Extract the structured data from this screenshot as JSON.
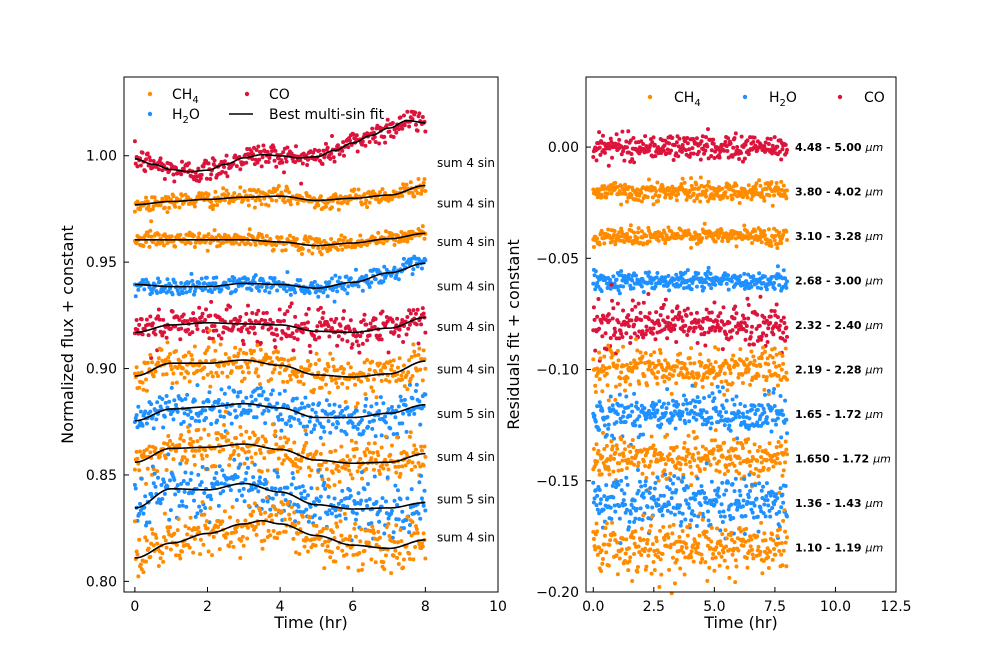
{
  "colors": {
    "CH4": "#FF8C00",
    "H2O": "#1E90FF",
    "CO": "#DC143C",
    "fit": "#000000"
  },
  "chart_data": [
    {
      "type": "scatter",
      "panel": "left",
      "xlabel": "Time (hr)",
      "ylabel": "Normalized flux + constant",
      "xlim": [
        -0.3,
        10
      ],
      "ylim": [
        0.795,
        1.037
      ],
      "xticks": [
        0,
        2,
        4,
        6,
        8,
        10
      ],
      "xtick_labels": [
        "0",
        "2",
        "4",
        "6",
        "8",
        "10"
      ],
      "yticks": [
        0.8,
        0.85,
        0.9,
        0.95,
        1.0
      ],
      "ytick_labels": [
        "0.80",
        "0.85",
        "0.90",
        "0.95",
        "1.00"
      ],
      "legend": [
        {
          "name": "CH4",
          "label": "CH",
          "sub": "4",
          "color_key": "CH4"
        },
        {
          "name": "CO",
          "label": "CO",
          "sub": "",
          "color_key": "CO"
        },
        {
          "name": "H2O",
          "label": "H",
          "sub": "2",
          "suffix": "O",
          "color_key": "H2O"
        },
        {
          "name": "fit",
          "label": "Best multi-sin fit",
          "sub": "",
          "color_key": "fit"
        }
      ],
      "series": [
        {
          "species": "CO",
          "offset": 0.997,
          "spread": 0.003,
          "fit_label": "sum 4 sin",
          "fit_t": [
            0,
            0.5,
            1,
            1.5,
            2,
            2.5,
            3,
            3.5,
            4,
            4.5,
            5,
            5.5,
            6,
            6.5,
            7,
            7.5,
            8
          ],
          "fit_y": [
            0.9985,
            0.996,
            0.9935,
            0.9925,
            0.9932,
            0.996,
            0.999,
            1.0005,
            1.0,
            0.999,
            0.9995,
            1.0025,
            1.006,
            1.0095,
            1.013,
            1.0165,
            1.0155
          ]
        },
        {
          "species": "CH4",
          "offset": 0.978,
          "spread": 0.002,
          "fit_label": "sum 4 sin",
          "fit_t": [
            0,
            1,
            2,
            3,
            4,
            5,
            6,
            7,
            8
          ],
          "fit_y": [
            0.977,
            0.9785,
            0.9795,
            0.9805,
            0.981,
            0.979,
            0.98,
            0.9815,
            0.986
          ]
        },
        {
          "species": "CH4",
          "offset": 0.96,
          "spread": 0.0018,
          "fit_label": "sum 4 sin",
          "fit_t": [
            0,
            1,
            2,
            3,
            4,
            5,
            6,
            7,
            8
          ],
          "fit_y": [
            0.9605,
            0.9605,
            0.9605,
            0.9605,
            0.9595,
            0.9578,
            0.959,
            0.961,
            0.9635
          ]
        },
        {
          "species": "H2O",
          "offset": 0.939,
          "spread": 0.002,
          "fit_label": "sum 4 sin",
          "fit_t": [
            0,
            1,
            2,
            3,
            4,
            5,
            6,
            7,
            8
          ],
          "fit_y": [
            0.9395,
            0.9385,
            0.9385,
            0.94,
            0.9395,
            0.9378,
            0.9405,
            0.945,
            0.9495
          ]
        },
        {
          "species": "CO",
          "offset": 0.92,
          "spread": 0.0045,
          "fit_label": "sum 4 sin",
          "fit_t": [
            0,
            1,
            2,
            3,
            4,
            5,
            6,
            7,
            8
          ],
          "fit_y": [
            0.917,
            0.9205,
            0.9215,
            0.921,
            0.9205,
            0.9175,
            0.917,
            0.919,
            0.924
          ]
        },
        {
          "species": "CH4",
          "offset": 0.9,
          "spread": 0.0045,
          "fit_label": "sum 4 sin",
          "fit_t": [
            0,
            1,
            2,
            3,
            4,
            5,
            6,
            7,
            8
          ],
          "fit_y": [
            0.8965,
            0.9025,
            0.9025,
            0.904,
            0.9015,
            0.897,
            0.896,
            0.8975,
            0.9035
          ]
        },
        {
          "species": "H2O",
          "offset": 0.879,
          "spread": 0.005,
          "fit_label": "sum 5 sin",
          "fit_t": [
            0,
            1,
            2,
            3,
            4,
            5,
            6,
            7,
            8
          ],
          "fit_y": [
            0.8755,
            0.881,
            0.882,
            0.8835,
            0.8815,
            0.877,
            0.877,
            0.879,
            0.883
          ]
        },
        {
          "species": "CH4",
          "offset": 0.859,
          "spread": 0.005,
          "fit_label": "sum 4 sin",
          "fit_t": [
            0,
            1,
            2,
            3,
            4,
            5,
            6,
            7,
            8
          ],
          "fit_y": [
            0.856,
            0.8625,
            0.863,
            0.8645,
            0.862,
            0.857,
            0.8555,
            0.856,
            0.86
          ]
        },
        {
          "species": "H2O",
          "offset": 0.839,
          "spread": 0.0065,
          "fit_label": "sum 5 sin",
          "fit_t": [
            0,
            1,
            2,
            3,
            4,
            5,
            6,
            7,
            8
          ],
          "fit_y": [
            0.8345,
            0.8435,
            0.843,
            0.846,
            0.842,
            0.836,
            0.834,
            0.8345,
            0.837
          ]
        },
        {
          "species": "CH4",
          "offset": 0.821,
          "spread": 0.006,
          "fit_label": "sum 4 sin",
          "fit_t": [
            0,
            1,
            2,
            3,
            3.5,
            4,
            5,
            6,
            7,
            8
          ],
          "fit_y": [
            0.811,
            0.818,
            0.8225,
            0.827,
            0.8285,
            0.827,
            0.8215,
            0.817,
            0.8155,
            0.8195
          ]
        }
      ]
    },
    {
      "type": "scatter",
      "panel": "right",
      "xlabel": "Time (hr)",
      "ylabel": "Residuals fit + constant",
      "xlim": [
        -0.3,
        12.5
      ],
      "ylim": [
        -0.2,
        0.0315
      ],
      "xticks": [
        0,
        2.5,
        5,
        7.5,
        10,
        12.5
      ],
      "xtick_labels": [
        "0.0",
        "2.5",
        "5.0",
        "7.5",
        "10.0",
        "12.5"
      ],
      "yticks": [
        0,
        -0.05,
        -0.1,
        -0.15,
        -0.2
      ],
      "ytick_labels": [
        "0.00",
        "−0.05",
        "−0.10",
        "−0.15",
        "−0.20"
      ],
      "legend": [
        {
          "name": "CH4",
          "label": "CH",
          "sub": "4",
          "color_key": "CH4"
        },
        {
          "name": "H2O",
          "label": "H",
          "sub": "2",
          "suffix": "O",
          "color_key": "H2O"
        },
        {
          "name": "CO",
          "label": "CO",
          "sub": "",
          "color_key": "CO"
        }
      ],
      "series": [
        {
          "species": "CO",
          "offset": 0.0,
          "spread": 0.0028,
          "band": "4.48 - 5.00"
        },
        {
          "species": "CH4",
          "offset": -0.02,
          "spread": 0.0022,
          "band": "3.80 - 4.02"
        },
        {
          "species": "CH4",
          "offset": -0.04,
          "spread": 0.002,
          "band": "3.10 - 3.28"
        },
        {
          "species": "H2O",
          "offset": -0.06,
          "spread": 0.0022,
          "band": "2.68 - 3.00"
        },
        {
          "species": "CO",
          "offset": -0.08,
          "spread": 0.005,
          "band": "2.32 - 2.40"
        },
        {
          "species": "CH4",
          "offset": -0.1,
          "spread": 0.0045,
          "band": "2.19 - 2.28"
        },
        {
          "species": "H2O",
          "offset": -0.12,
          "spread": 0.005,
          "band": "1.65 - 1.72"
        },
        {
          "species": "CH4",
          "offset": -0.14,
          "spread": 0.0045,
          "band": "1.650 - 1.72"
        },
        {
          "species": "H2O",
          "offset": -0.16,
          "spread": 0.006,
          "band": "1.36 - 1.43"
        },
        {
          "species": "CH4",
          "offset": -0.18,
          "spread": 0.006,
          "band": "1.10 - 1.19"
        }
      ],
      "band_unit": "μm"
    }
  ]
}
